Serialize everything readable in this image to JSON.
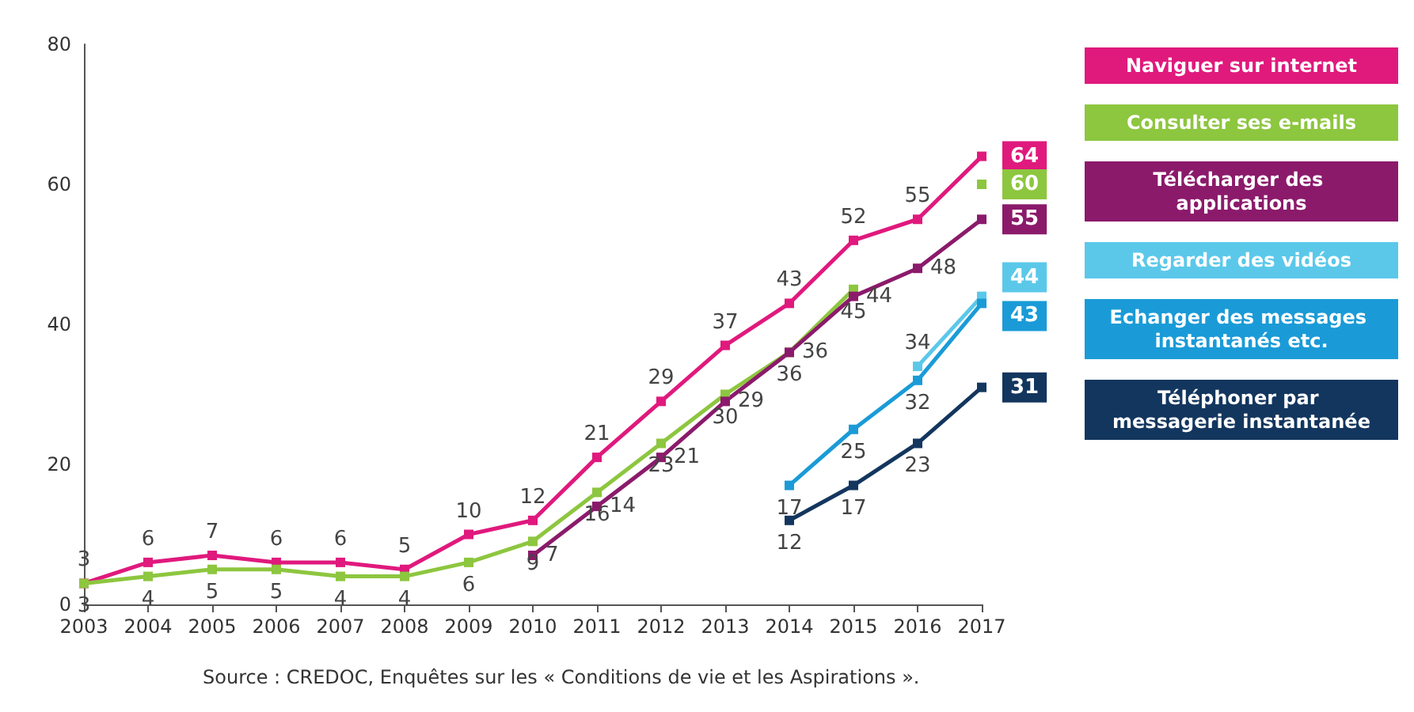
{
  "chart_data": {
    "type": "line",
    "categories": [
      "2003",
      "2004",
      "2005",
      "2006",
      "2007",
      "2008",
      "2009",
      "2010",
      "2011",
      "2012",
      "2013",
      "2014",
      "2015",
      "2016",
      "2017"
    ],
    "series": [
      {
        "name": "Naviguer sur internet",
        "color": "#e0197d",
        "values": [
          3,
          6,
          7,
          6,
          6,
          5,
          10,
          12,
          21,
          29,
          37,
          43,
          52,
          55,
          64
        ]
      },
      {
        "name": "Consulter ses e-mails",
        "color": "#8dc63f",
        "values": [
          3,
          4,
          5,
          5,
          4,
          4,
          6,
          9,
          16,
          23,
          30,
          36,
          45,
          null,
          60
        ]
      },
      {
        "name": "Télécharger des applications",
        "color": "#8b1a6b",
        "values": [
          null,
          null,
          null,
          null,
          null,
          null,
          null,
          7,
          14,
          21,
          29,
          36,
          44,
          48,
          55
        ]
      },
      {
        "name": "Regarder des vidéos",
        "color": "#5bc8ea",
        "values": [
          null,
          null,
          null,
          null,
          null,
          null,
          null,
          null,
          null,
          null,
          null,
          null,
          null,
          34,
          44
        ]
      },
      {
        "name": "Echanger des messages instantanés etc.",
        "color": "#1a9bd7",
        "values": [
          null,
          null,
          null,
          null,
          null,
          null,
          null,
          null,
          null,
          null,
          null,
          17,
          25,
          32,
          43
        ]
      },
      {
        "name": "Téléphoner par messagerie instantanée",
        "color": "#13365e",
        "values": [
          null,
          null,
          null,
          null,
          null,
          null,
          null,
          null,
          null,
          null,
          null,
          12,
          17,
          23,
          31
        ]
      }
    ],
    "ylim": [
      0,
      80
    ],
    "yticks": [
      0,
      20,
      40,
      60,
      80
    ],
    "grid": false,
    "legend": "right",
    "marker": "square",
    "line_style": "solid",
    "data_labels": true,
    "annotations": [
      "Source : CREDOC, Enquêtes sur les « Conditions de vie et les Aspirations »."
    ]
  }
}
